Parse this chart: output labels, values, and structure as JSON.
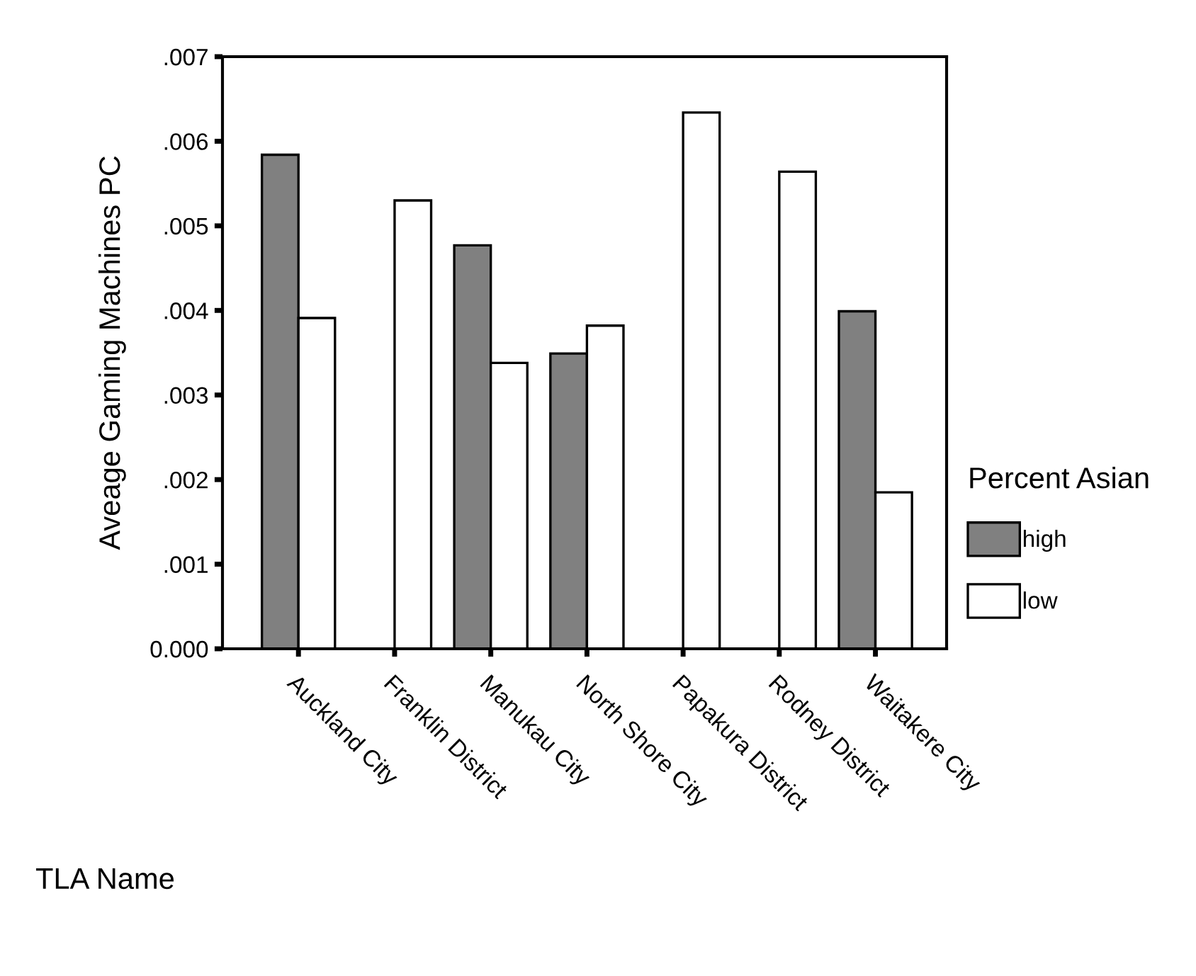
{
  "chart_data": {
    "type": "bar",
    "xlabel": "TLA Name",
    "ylabel": "Aveage Gaming Machines PC",
    "legend_title": "Percent Asian",
    "legend": "right",
    "categories": [
      "Auckland City",
      "Franklin District",
      "Manukau City",
      "North Shore City",
      "Papakura District",
      "Rodney District",
      "Waitakere City"
    ],
    "series": [
      {
        "name": "high",
        "color": "#808080",
        "values": [
          0.00584,
          null,
          0.00477,
          0.00349,
          null,
          null,
          0.00399
        ]
      },
      {
        "name": "low",
        "color": "#ffffff",
        "values": [
          0.00391,
          0.0053,
          0.00338,
          0.00382,
          0.00634,
          0.00564,
          0.00185
        ]
      }
    ],
    "ylim": [
      0,
      0.007
    ],
    "yticks": [
      {
        "value": 0,
        "label": "0.000"
      },
      {
        "value": 0.001,
        "label": ".001"
      },
      {
        "value": 0.002,
        "label": ".002"
      },
      {
        "value": 0.003,
        "label": ".003"
      },
      {
        "value": 0.004,
        "label": ".004"
      },
      {
        "value": 0.005,
        "label": ".005"
      },
      {
        "value": 0.006,
        "label": ".006"
      },
      {
        "value": 0.007,
        "label": ".007"
      }
    ],
    "grid": false
  }
}
